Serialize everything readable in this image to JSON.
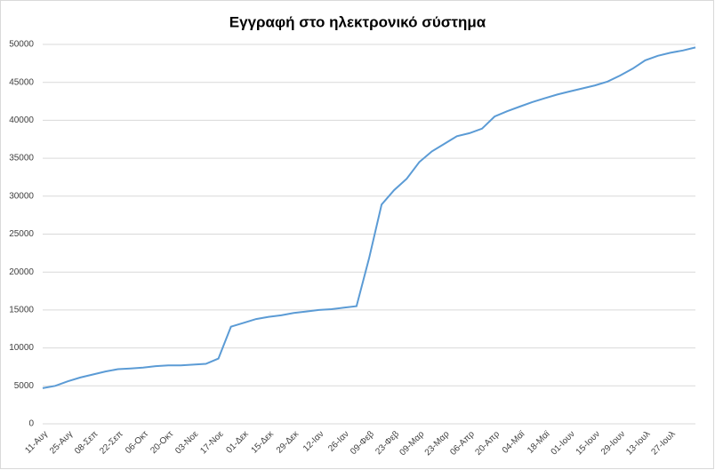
{
  "chart_data": {
    "type": "line",
    "title": "Εγγραφή στο ηλεκτρονικό σύστημα",
    "categories": [
      "11-Αυγ",
      null,
      "25-Αυγ",
      null,
      "08-Σεπ",
      null,
      "22-Σεπ",
      null,
      "06-Οκτ",
      null,
      "20-Οκτ",
      null,
      "03-Νοε",
      null,
      "17-Νοε",
      null,
      "01-Δεκ",
      null,
      "15-Δεκ",
      null,
      "29-Δεκ",
      null,
      "12-Ιαν",
      null,
      "26-Ιαν",
      null,
      "09-Φεβ",
      null,
      "23-Φεβ",
      null,
      "09-Μαρ",
      null,
      "23-Μαρ",
      null,
      "06-Απρ",
      null,
      "20-Απρ",
      null,
      "04-Μαϊ",
      null,
      "18-Μαϊ",
      null,
      "01-Ιουν",
      null,
      "15-Ιουν",
      null,
      "29-Ιουν",
      null,
      "13-Ιουλ",
      null,
      "27-Ιουλ",
      null,
      null
    ],
    "series": [
      {
        "color": "#5b9bd5",
        "values": [
          4700,
          5000,
          5600,
          6100,
          6500,
          6900,
          7200,
          7300,
          7400,
          7600,
          7700,
          7700,
          7800,
          7900,
          8600,
          12800,
          13300,
          13800,
          14100,
          14300,
          14600,
          14800,
          15000,
          15100,
          15300,
          15500,
          21800,
          28900,
          30800,
          32300,
          34500,
          35900,
          36900,
          37900,
          38300,
          38900,
          40500,
          41200,
          41800,
          42400,
          42900,
          43400,
          43800,
          44200,
          44600,
          45100,
          45900,
          46800,
          47900,
          48500,
          48900,
          49200,
          49600
        ]
      }
    ],
    "ylim": [
      0,
      50000
    ],
    "yticks": [
      0,
      5000,
      10000,
      15000,
      20000,
      25000,
      30000,
      35000,
      40000,
      45000,
      50000
    ],
    "grid": true
  }
}
